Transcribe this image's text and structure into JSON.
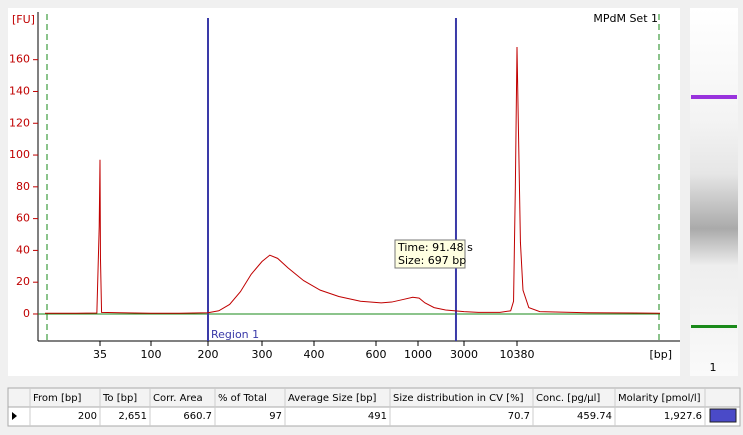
{
  "chart_data": {
    "type": "line",
    "title": "MPdM Set 1",
    "ylabel": "[FU]",
    "xlabel": "[bp]",
    "xlim": [
      0,
      30000
    ],
    "xticks": [
      35,
      100,
      200,
      300,
      400,
      600,
      1000,
      3000,
      10380
    ],
    "ylim": [
      -17,
      190
    ],
    "yticks": [
      0,
      20,
      40,
      60,
      80,
      100,
      120,
      140,
      160
    ],
    "region": {
      "from": 200,
      "to": 2651,
      "label": "Region 1"
    },
    "annotations": [
      "Time: 91.48 s",
      "Size: 697 bp"
    ],
    "lane_label": "1",
    "series": [
      {
        "color": "#c00000",
        "x": [
          0,
          20,
          33,
          34.5,
          35,
          35.6,
          37,
          60,
          100,
          150,
          200,
          220,
          240,
          260,
          280,
          300,
          315,
          330,
          350,
          380,
          420,
          480,
          550,
          650,
          750,
          850,
          950,
          1050,
          1300,
          1700,
          2200,
          3000,
          5000,
          8000,
          9500,
          9900,
          10150,
          10380,
          10600,
          10850,
          11200,
          12000,
          13500,
          20000,
          30000
        ],
        "values": [
          0.5,
          0.5,
          0.6,
          55,
          97,
          35,
          1,
          0.8,
          0.5,
          0.5,
          0.8,
          2,
          6,
          14,
          25,
          33,
          37,
          35,
          29,
          21,
          15,
          11,
          8,
          7,
          7.5,
          9,
          10.5,
          10,
          7,
          4,
          2.5,
          1.5,
          1,
          1,
          2,
          8,
          80,
          168,
          110,
          45,
          15,
          4,
          1.5,
          0.8,
          0.5
        ]
      }
    ]
  },
  "table": {
    "headers": [
      "From [bp]",
      "To [bp]",
      "Corr. Area",
      "% of Total",
      "Average Size [bp]",
      "Size distribution in CV [%]",
      "Conc. [pg/µl]",
      "Molarity [pmol/l]"
    ],
    "rows": [
      [
        "200",
        "2,651",
        "660.7",
        "97",
        "491",
        "70.7",
        "459.74",
        "1,927.6"
      ]
    ]
  }
}
